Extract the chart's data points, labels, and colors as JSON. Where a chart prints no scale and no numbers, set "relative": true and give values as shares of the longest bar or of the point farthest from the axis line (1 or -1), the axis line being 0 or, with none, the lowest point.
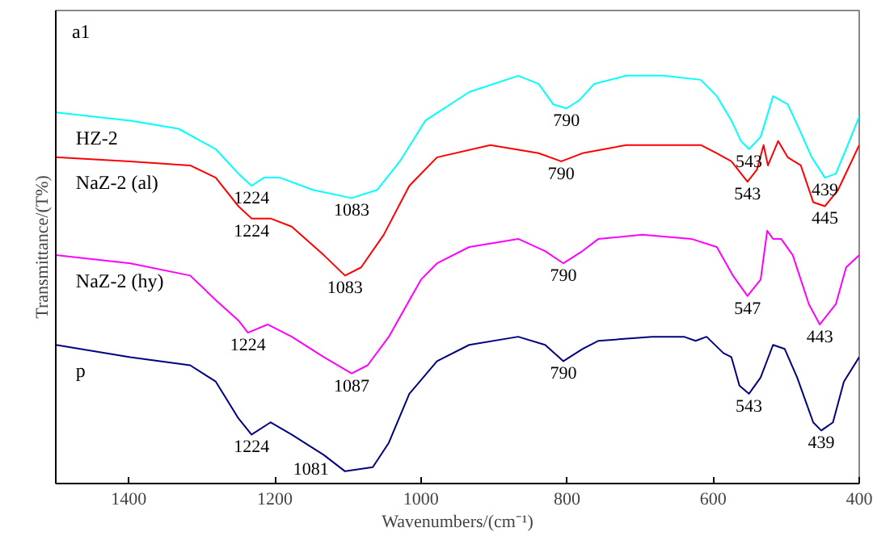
{
  "chart_data": {
    "type": "line",
    "relative": true,
    "xlabel": "Wavenumbers/(cm⁻¹)",
    "ylabel": "Transmittance/(T%)",
    "xlim": [
      1500,
      400
    ],
    "xticks": [
      1400,
      1200,
      1000,
      800,
      600,
      400
    ],
    "grid": false,
    "legend": false,
    "series": [
      {
        "name": "HZ-2",
        "color": "#00ffff",
        "x": [
          1500,
          1398,
          1332,
          1281,
          1250,
          1232,
          1215,
          1193,
          1148,
          1095,
          1060,
          1029,
          994,
          934,
          867,
          839,
          819,
          801,
          783,
          763,
          719,
          668,
          617,
          595,
          575,
          562,
          551,
          535,
          518,
          498,
          485,
          465,
          447,
          432,
          418,
          400
        ],
        "values": [
          0.91,
          0.89,
          0.87,
          0.82,
          0.76,
          0.73,
          0.75,
          0.75,
          0.72,
          0.7,
          0.72,
          0.79,
          0.89,
          0.96,
          1.0,
          0.98,
          0.93,
          0.92,
          0.94,
          0.98,
          1.0,
          1.0,
          0.99,
          0.95,
          0.89,
          0.84,
          0.82,
          0.85,
          0.95,
          0.93,
          0.88,
          0.8,
          0.75,
          0.76,
          0.82,
          0.9
        ]
      },
      {
        "name": "NaZ-2 (al)",
        "color": "#ff0000",
        "x": [
          1500,
          1398,
          1316,
          1281,
          1250,
          1232,
          1206,
          1177,
          1133,
          1104,
          1082,
          1051,
          1016,
          978,
          905,
          839,
          808,
          779,
          719,
          617,
          595,
          575,
          553,
          540,
          531,
          525,
          511,
          498,
          480,
          463,
          447,
          429,
          400
        ],
        "values": [
          0.8,
          0.79,
          0.78,
          0.75,
          0.68,
          0.65,
          0.65,
          0.63,
          0.56,
          0.51,
          0.53,
          0.61,
          0.73,
          0.8,
          0.83,
          0.81,
          0.79,
          0.81,
          0.83,
          0.83,
          0.81,
          0.79,
          0.74,
          0.77,
          0.83,
          0.78,
          0.84,
          0.8,
          0.78,
          0.69,
          0.68,
          0.72,
          0.83
        ]
      },
      {
        "name": "NaZ-2 (hy)",
        "color": "#ff00ff",
        "x": [
          1500,
          1398,
          1316,
          1281,
          1250,
          1237,
          1210,
          1177,
          1133,
          1095,
          1073,
          1044,
          1000,
          978,
          934,
          867,
          830,
          805,
          779,
          757,
          697,
          630,
          595,
          573,
          553,
          535,
          526,
          518,
          507,
          491,
          469,
          454,
          432,
          418,
          400
        ],
        "values": [
          0.56,
          0.54,
          0.51,
          0.45,
          0.4,
          0.37,
          0.39,
          0.36,
          0.31,
          0.27,
          0.29,
          0.36,
          0.5,
          0.54,
          0.58,
          0.6,
          0.57,
          0.54,
          0.57,
          0.6,
          0.61,
          0.6,
          0.58,
          0.51,
          0.46,
          0.5,
          0.62,
          0.6,
          0.6,
          0.56,
          0.44,
          0.39,
          0.44,
          0.53,
          0.56
        ]
      },
      {
        "name": "p",
        "color": "#000080",
        "x": [
          1500,
          1398,
          1316,
          1281,
          1250,
          1232,
          1206,
          1177,
          1133,
          1104,
          1066,
          1044,
          1016,
          978,
          934,
          867,
          830,
          805,
          779,
          757,
          684,
          640,
          624,
          609,
          586,
          575,
          564,
          551,
          535,
          518,
          502,
          485,
          463,
          452,
          436,
          421,
          400
        ],
        "values": [
          0.34,
          0.31,
          0.29,
          0.25,
          0.16,
          0.12,
          0.15,
          0.12,
          0.07,
          0.03,
          0.04,
          0.1,
          0.22,
          0.3,
          0.34,
          0.36,
          0.34,
          0.3,
          0.33,
          0.35,
          0.36,
          0.36,
          0.35,
          0.36,
          0.32,
          0.31,
          0.24,
          0.22,
          0.26,
          0.34,
          0.33,
          0.26,
          0.15,
          0.13,
          0.15,
          0.25,
          0.31
        ]
      }
    ],
    "annotations": [
      "a1",
      {
        "text": "1224",
        "x": 1232,
        "y": 0.73
      },
      {
        "text": "1083",
        "x": 1095,
        "y": 0.7
      },
      {
        "text": "790",
        "x": 801,
        "y": 0.92
      },
      {
        "text": "543",
        "x": 551,
        "y": 0.82
      },
      {
        "text": "439",
        "x": 447,
        "y": 0.75
      },
      {
        "text": "1224",
        "x": 1232,
        "y": 0.65
      },
      {
        "text": "1083",
        "x": 1104,
        "y": 0.51
      },
      {
        "text": "790",
        "x": 808,
        "y": 0.79
      },
      {
        "text": "543",
        "x": 553,
        "y": 0.74
      },
      {
        "text": "445",
        "x": 447,
        "y": 0.68
      },
      {
        "text": "1224",
        "x": 1237,
        "y": 0.37
      },
      {
        "text": "1087",
        "x": 1095,
        "y": 0.27
      },
      {
        "text": "790",
        "x": 805,
        "y": 0.54
      },
      {
        "text": "547",
        "x": 553,
        "y": 0.46
      },
      {
        "text": "443",
        "x": 454,
        "y": 0.39
      },
      {
        "text": "1224",
        "x": 1232,
        "y": 0.12
      },
      {
        "text": "1081",
        "x": 1104,
        "y": 0.03
      },
      {
        "text": "790",
        "x": 805,
        "y": 0.3
      },
      {
        "text": "543",
        "x": 551,
        "y": 0.22
      },
      {
        "text": "439",
        "x": 452,
        "y": 0.13
      }
    ]
  }
}
